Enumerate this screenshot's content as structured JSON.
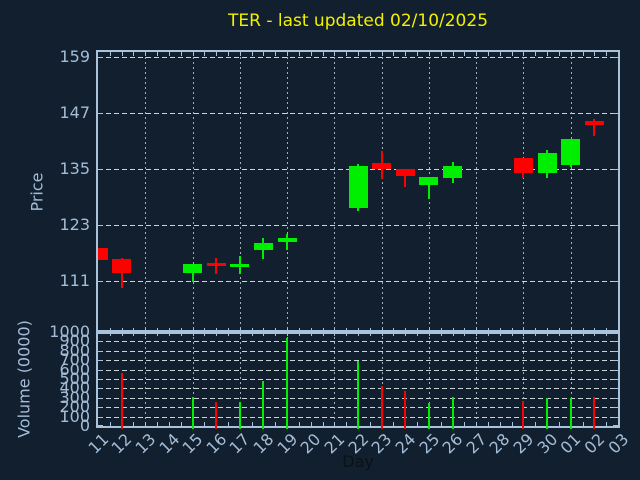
{
  "title": "TER - last updated 02/10/2025",
  "axes": {
    "price_label": "Price",
    "volume_label": "Volume (0000)",
    "x_label": "Day",
    "price_tick_labels": [
      "159",
      "147",
      "135",
      "123",
      "111"
    ],
    "volume_tick_labels": [
      "1000",
      "900",
      "800",
      "700",
      "600",
      "500",
      "400",
      "300",
      "200",
      "100",
      "0"
    ]
  },
  "colors": {
    "background": "#121f2e",
    "frame": "#a9c3dd",
    "tick_label": "#a3bdd8",
    "title": "#f1f100",
    "x_axis_label": "#0c1117",
    "grid_dashed": "#ccd5da",
    "grid_dotted": "#a3aeb6",
    "up": "#00ee00",
    "down": "#ff0000"
  },
  "chart_data": {
    "type": "candlestick+volume",
    "title": "TER - last updated 02/10/2025",
    "xlabel": "Day",
    "ylabel_price": "Price",
    "ylabel_volume": "Volume (0000)",
    "x_categories": [
      "11",
      "12",
      "13",
      "14",
      "15",
      "16",
      "17",
      "18",
      "19",
      "20",
      "21",
      "22",
      "23",
      "24",
      "25",
      "26",
      "27",
      "28",
      "29",
      "30",
      "01",
      "02",
      "03"
    ],
    "price_ylim": [
      100,
      160
    ],
    "price_ticks": [
      159,
      147,
      135,
      123,
      111
    ],
    "volume_ylim": [
      0,
      1000
    ],
    "volume_ticks": [
      1000,
      900,
      800,
      700,
      600,
      500,
      400,
      300,
      200,
      100,
      0
    ],
    "grid_vertical_day_indices": [
      2,
      4,
      6,
      8,
      10,
      12,
      14,
      16,
      18,
      20
    ],
    "legend": "none",
    "candles": [
      {
        "day": "11",
        "i": 0,
        "open": 117.9,
        "high": 117.9,
        "low": 115.4,
        "close": 115.4,
        "dir": "down",
        "volume": null
      },
      {
        "day": "12",
        "i": 1,
        "open": 115.6,
        "high": 115.9,
        "low": 109.5,
        "close": 112.6,
        "dir": "down",
        "volume": 560
      },
      {
        "day": "15",
        "i": 4,
        "open": 112.7,
        "high": 114.5,
        "low": 110.8,
        "close": 114.5,
        "dir": "up",
        "volume": 310
      },
      {
        "day": "16",
        "i": 5,
        "open": 114.7,
        "high": 115.9,
        "low": 112.4,
        "close": 114.2,
        "dir": "down",
        "volume": 255
      },
      {
        "day": "17",
        "i": 6,
        "open": 114.0,
        "high": 116.3,
        "low": 112.4,
        "close": 114.5,
        "dir": "up",
        "volume": 255
      },
      {
        "day": "18",
        "i": 7,
        "open": 117.6,
        "high": 120.1,
        "low": 115.6,
        "close": 119.0,
        "dir": "up",
        "volume": 480
      },
      {
        "day": "19",
        "i": 8,
        "open": 119.3,
        "high": 121.1,
        "low": 117.6,
        "close": 120.2,
        "dir": "up",
        "volume": 940
      },
      {
        "day": "22",
        "i": 11,
        "open": 126.6,
        "high": 136.0,
        "low": 126.0,
        "close": 135.6,
        "dir": "up",
        "volume": 690
      },
      {
        "day": "23",
        "i": 12,
        "open": 136.3,
        "high": 138.8,
        "low": 132.7,
        "close": 134.9,
        "dir": "down",
        "volume": 425
      },
      {
        "day": "24",
        "i": 13,
        "open": 135.0,
        "high": 135.0,
        "low": 131.1,
        "close": 133.5,
        "dir": "down",
        "volume": 370
      },
      {
        "day": "25",
        "i": 14,
        "open": 131.5,
        "high": 133.3,
        "low": 128.6,
        "close": 133.3,
        "dir": "up",
        "volume": 250
      },
      {
        "day": "26",
        "i": 15,
        "open": 133.1,
        "high": 136.5,
        "low": 132.0,
        "close": 135.6,
        "dir": "up",
        "volume": 310
      },
      {
        "day": "29",
        "i": 18,
        "open": 137.2,
        "high": 137.2,
        "low": 133.1,
        "close": 134.1,
        "dir": "down",
        "volume": 265
      },
      {
        "day": "30",
        "i": 19,
        "open": 134.0,
        "high": 138.9,
        "low": 132.9,
        "close": 138.4,
        "dir": "up",
        "volume": 300
      },
      {
        "day": "01",
        "i": 20,
        "open": 135.7,
        "high": 141.3,
        "low": 135.4,
        "close": 141.3,
        "dir": "up",
        "volume": 300
      },
      {
        "day": "02",
        "i": 21,
        "open": 145.2,
        "high": 145.6,
        "low": 142.1,
        "close": 144.4,
        "dir": "down",
        "volume": 310
      }
    ]
  }
}
